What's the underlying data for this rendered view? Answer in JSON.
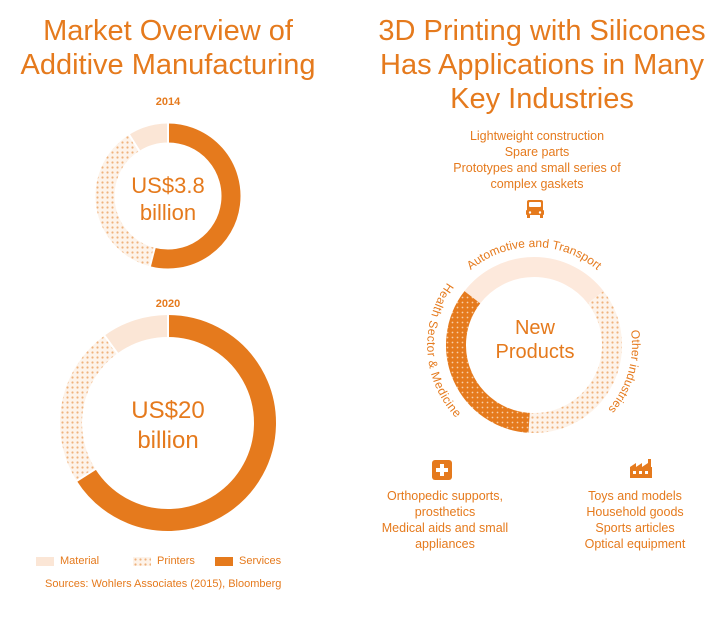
{
  "left_title": [
    "Market Overview of",
    "Additive Manufacturing"
  ],
  "right_title": [
    "3D Printing with Silicones",
    "Has Applications in Many",
    "Key Industries"
  ],
  "colors": {
    "accent": "#e57a1d",
    "material": "#fbe6d6",
    "printers_dots": "#f0b27a",
    "health_dots_bg": "#e57a1d",
    "automotive": "#fde9dc"
  },
  "chart_data": [
    {
      "type": "pie",
      "variant": "donut",
      "year": "2014",
      "center_label": [
        "US$3.8",
        "billion"
      ],
      "categories": [
        "Material",
        "Printers",
        "Services"
      ],
      "values": [
        0.09,
        0.37,
        0.54
      ]
    },
    {
      "type": "pie",
      "variant": "donut",
      "year": "2020",
      "center_label": [
        "US$20",
        "billion"
      ],
      "categories": [
        "Material",
        "Printers",
        "Services"
      ],
      "values": [
        0.1,
        0.24,
        0.66
      ]
    }
  ],
  "legend": [
    {
      "label": "Material",
      "pattern": "material"
    },
    {
      "label": "Printers",
      "pattern": "printers"
    },
    {
      "label": "Services",
      "pattern": "services"
    }
  ],
  "source": "Sources: Wohlers Associates (2015), Bloomberg",
  "industries": {
    "center": [
      "New",
      "Products"
    ],
    "automotive_label": "Automotive and Transport",
    "other_label": "Other industries",
    "health_label": "Health Sector & Medicine",
    "automotive_items": [
      "Lightweight construction",
      "Spare parts",
      "Prototypes and small series of",
      "complex gaskets"
    ],
    "health_items": [
      "Orthopedic supports,",
      "prosthetics",
      "Medical aids and small",
      "appliances"
    ],
    "other_items": [
      "Toys and models",
      "Household goods",
      "Sports articles",
      "Optical equipment"
    ],
    "icons": [
      "car-icon",
      "medical-cross-icon",
      "factory-icon"
    ]
  }
}
